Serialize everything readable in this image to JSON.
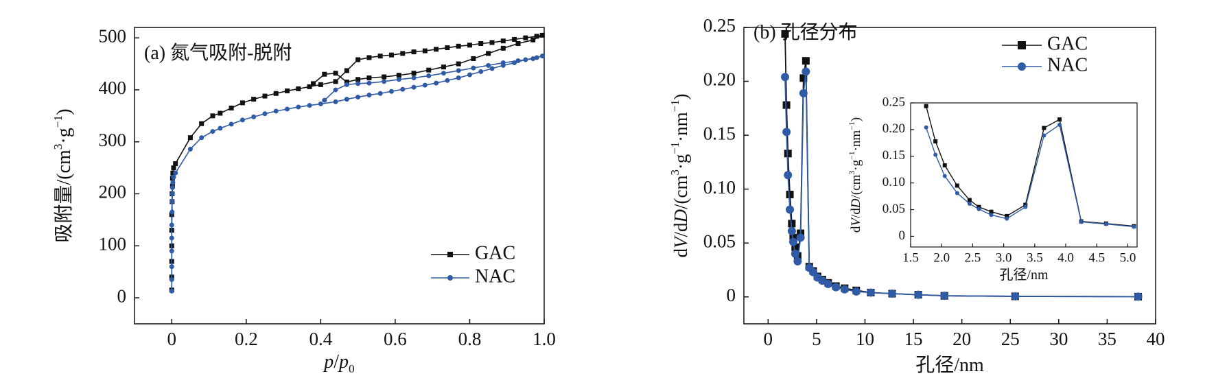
{
  "colors": {
    "gac": "#111111",
    "nac": "#2f5aa6",
    "axis": "#111111"
  },
  "chart_data": [
    {
      "type": "line",
      "panel": "a",
      "title": "(a) 氮气吸附-脱附",
      "xlabel": "p/p0",
      "ylabel": "吸附量/(cm3·g−1)",
      "xlim": [
        -0.1,
        1.0
      ],
      "ylim": [
        -50,
        520
      ],
      "xticks": [
        0,
        0.2,
        0.4,
        0.6,
        0.8,
        1.0
      ],
      "xtick_labels": [
        "0",
        "0.2",
        "0.4",
        "0.6",
        "0.8",
        "1.0"
      ],
      "yticks": [
        0,
        100,
        200,
        300,
        400,
        500
      ],
      "ytick_labels": [
        "0",
        "100",
        "200",
        "300",
        "400",
        "500"
      ],
      "legend": {
        "placement": "bottom-right",
        "entries": [
          "GAC",
          "NAC"
        ]
      },
      "series": [
        {
          "name": "GAC",
          "marker": "square",
          "x": [
            0.0,
            0.0,
            0.0,
            0.0,
            0.0,
            0.0,
            0.001,
            0.001,
            0.002,
            0.002,
            0.003,
            0.005,
            0.01,
            0.05,
            0.08,
            0.11,
            0.13,
            0.16,
            0.19,
            0.22,
            0.25,
            0.28,
            0.31,
            0.34,
            0.37,
            0.4,
            0.44,
            0.47,
            0.5,
            0.53,
            0.56,
            0.59,
            0.62,
            0.65,
            0.68,
            0.71,
            0.74,
            0.77,
            0.8,
            0.83,
            0.86,
            0.89,
            0.92,
            0.95,
            0.98,
            0.995,
            0.97,
            0.93,
            0.89,
            0.85,
            0.81,
            0.77,
            0.73,
            0.69,
            0.65,
            0.61,
            0.57,
            0.53,
            0.5,
            0.47,
            0.44,
            0.41,
            0.38
          ],
          "y": [
            15,
            40,
            70,
            100,
            130,
            160,
            185,
            200,
            215,
            230,
            240,
            250,
            258,
            308,
            335,
            350,
            355,
            365,
            375,
            382,
            388,
            393,
            398,
            402,
            406,
            410,
            416,
            437,
            458,
            462,
            465,
            467,
            470,
            473,
            475,
            478,
            481,
            484,
            486,
            489,
            491,
            494,
            497,
            500,
            503,
            505,
            496,
            489,
            480,
            470,
            460,
            450,
            444,
            438,
            432,
            428,
            425,
            423,
            420,
            415,
            432,
            430,
            412
          ]
        },
        {
          "name": "NAC",
          "marker": "circle",
          "x": [
            0.0,
            0.0,
            0.0,
            0.0,
            0.0,
            0.0,
            0.001,
            0.001,
            0.002,
            0.002,
            0.003,
            0.005,
            0.01,
            0.05,
            0.08,
            0.11,
            0.13,
            0.16,
            0.19,
            0.22,
            0.25,
            0.28,
            0.31,
            0.34,
            0.37,
            0.4,
            0.44,
            0.47,
            0.5,
            0.53,
            0.56,
            0.59,
            0.62,
            0.65,
            0.68,
            0.71,
            0.74,
            0.77,
            0.8,
            0.83,
            0.86,
            0.89,
            0.92,
            0.95,
            0.98,
            0.995,
            0.97,
            0.93,
            0.89,
            0.85,
            0.81,
            0.77,
            0.73,
            0.69,
            0.65,
            0.61,
            0.57,
            0.53,
            0.5,
            0.47,
            0.44,
            0.41
          ],
          "y": [
            13,
            35,
            60,
            90,
            115,
            140,
            165,
            185,
            200,
            212,
            222,
            232,
            240,
            286,
            308,
            320,
            326,
            334,
            342,
            348,
            354,
            359,
            363,
            367,
            370,
            373,
            377,
            382,
            386,
            390,
            393,
            397,
            401,
            405,
            409,
            413,
            418,
            423,
            429,
            435,
            441,
            447,
            452,
            458,
            462,
            465,
            460,
            456,
            452,
            447,
            442,
            437,
            432,
            427,
            423,
            420,
            416,
            413,
            412,
            410,
            400,
            380
          ]
        }
      ]
    },
    {
      "type": "line",
      "panel": "b",
      "title": "(b) 孔径分布",
      "xlabel": "孔径/nm",
      "ylabel": "dV/dD/(cm3·g−1·nm−1)",
      "xlim": [
        -2.5,
        40
      ],
      "ylim": [
        -0.025,
        0.25
      ],
      "xticks": [
        0,
        5,
        10,
        15,
        20,
        25,
        30,
        35,
        40
      ],
      "xtick_labels": [
        "0",
        "5",
        "10",
        "15",
        "20",
        "25",
        "30",
        "35",
        "40"
      ],
      "yticks": [
        0,
        0.05,
        0.1,
        0.15,
        0.2,
        0.25
      ],
      "ytick_labels": [
        "0",
        "0.05",
        "0.10",
        "0.15",
        "0.20",
        "0.25"
      ],
      "legend": {
        "placement": "top-right",
        "entries": [
          "GAC",
          "NAC"
        ]
      },
      "series": [
        {
          "name": "GAC",
          "marker": "square",
          "x": [
            1.75,
            1.9,
            2.05,
            2.25,
            2.45,
            2.6,
            2.8,
            3.05,
            3.35,
            3.65,
            3.9,
            4.25,
            4.65,
            5.1,
            5.6,
            6.2,
            7.0,
            7.9,
            9.1,
            10.6,
            12.8,
            15.5,
            18.2,
            25.5,
            38.2
          ],
          "y": [
            0.244,
            0.178,
            0.133,
            0.095,
            0.068,
            0.055,
            0.046,
            0.038,
            0.059,
            0.203,
            0.219,
            0.028,
            0.024,
            0.019,
            0.016,
            0.013,
            0.01,
            0.008,
            0.006,
            0.004,
            0.003,
            0.002,
            0.001,
            0.0005,
            0.0002
          ]
        },
        {
          "name": "NAC",
          "marker": "circle",
          "x": [
            1.75,
            1.9,
            2.05,
            2.25,
            2.45,
            2.6,
            2.8,
            3.05,
            3.35,
            3.65,
            3.9,
            4.25,
            4.65,
            5.1,
            5.6,
            6.2,
            7.0,
            7.9,
            9.1,
            10.6,
            12.8,
            15.5,
            18.2,
            25.5,
            38.2
          ],
          "y": [
            0.204,
            0.153,
            0.113,
            0.081,
            0.061,
            0.051,
            0.04,
            0.033,
            0.055,
            0.189,
            0.209,
            0.027,
            0.023,
            0.018,
            0.015,
            0.012,
            0.009,
            0.007,
            0.005,
            0.004,
            0.003,
            0.002,
            0.001,
            0.0005,
            0.0002
          ]
        }
      ],
      "inset": {
        "xlabel": "孔径/nm",
        "ylabel": "dV/dD/(cm3·g−1·nm−1)",
        "xlim": [
          1.5,
          5.15
        ],
        "ylim": [
          -0.02,
          0.25
        ],
        "xticks": [
          1.5,
          2.0,
          2.5,
          3.0,
          3.5,
          4.0,
          4.5,
          5.0
        ],
        "xtick_labels": [
          "1.5",
          "2.0",
          "2.5",
          "3.0",
          "3.5",
          "4.0",
          "4.5",
          "5.0"
        ],
        "yticks": [
          0,
          0.05,
          0.1,
          0.15,
          0.2,
          0.25
        ],
        "ytick_labels": [
          "0",
          "0.05",
          "0.10",
          "0.15",
          "0.20",
          "0.25"
        ],
        "series": [
          {
            "name": "GAC",
            "marker": "square",
            "x": [
              1.75,
              1.9,
              2.05,
              2.25,
              2.45,
              2.6,
              2.8,
              3.05,
              3.35,
              3.65,
              3.9,
              4.25,
              4.65,
              5.1
            ],
            "y": [
              0.244,
              0.178,
              0.133,
              0.095,
              0.068,
              0.055,
              0.046,
              0.038,
              0.059,
              0.203,
              0.219,
              0.028,
              0.024,
              0.019
            ]
          },
          {
            "name": "NAC",
            "marker": "circle",
            "x": [
              1.75,
              1.9,
              2.05,
              2.25,
              2.45,
              2.6,
              2.8,
              3.05,
              3.35,
              3.65,
              3.9,
              4.25,
              4.65,
              5.1
            ],
            "y": [
              0.204,
              0.153,
              0.113,
              0.081,
              0.061,
              0.051,
              0.04,
              0.033,
              0.055,
              0.189,
              0.209,
              0.027,
              0.023,
              0.018
            ]
          }
        ]
      }
    }
  ]
}
